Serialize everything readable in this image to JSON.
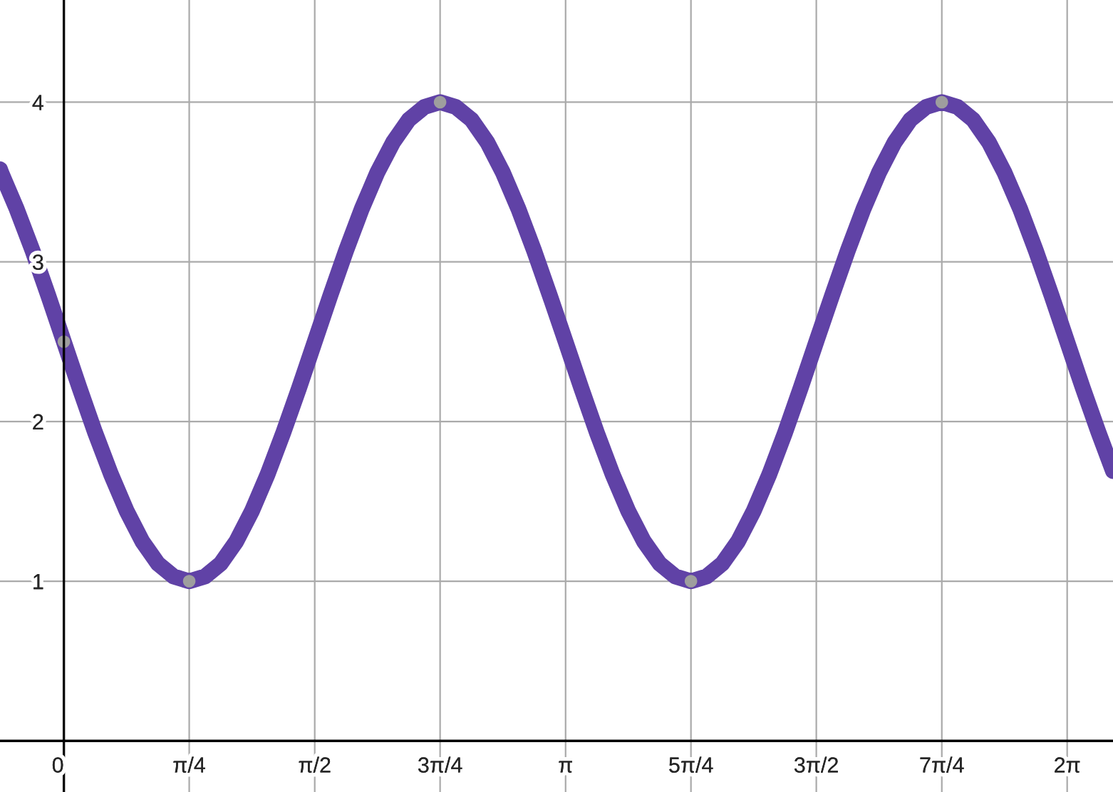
{
  "chart_data": {
    "type": "line",
    "xlim": [
      -0.4,
      6.57
    ],
    "ylim": [
      -0.32,
      4.64
    ],
    "xticks": [
      {
        "value": 0,
        "label": "0"
      },
      {
        "value": 0.785,
        "label": "π/4"
      },
      {
        "value": 1.571,
        "label": "π/2"
      },
      {
        "value": 2.356,
        "label": "3π/4"
      },
      {
        "value": 3.142,
        "label": "π"
      },
      {
        "value": 3.927,
        "label": "5π/4"
      },
      {
        "value": 4.712,
        "label": "3π/2"
      },
      {
        "value": 5.498,
        "label": "7π/4"
      },
      {
        "value": 6.283,
        "label": "2π"
      }
    ],
    "yticks": [
      1,
      2,
      3,
      4
    ],
    "grid": true,
    "series": [
      {
        "color": "#6042a6",
        "marker": "none",
        "line_style": "solid",
        "x": [
          -0.4,
          -0.393,
          -0.295,
          -0.196,
          -0.098,
          0,
          0.098,
          0.196,
          0.295,
          0.393,
          0.491,
          0.589,
          0.687,
          0.785,
          0.884,
          0.982,
          1.08,
          1.178,
          1.276,
          1.374,
          1.473,
          1.571,
          1.669,
          1.767,
          1.865,
          1.963,
          2.062,
          2.16,
          2.258,
          2.356,
          2.454,
          2.553,
          2.651,
          2.749,
          2.847,
          2.945,
          3.043,
          3.142,
          3.24,
          3.338,
          3.436,
          3.534,
          3.632,
          3.731,
          3.829,
          3.927,
          4.025,
          4.123,
          4.222,
          4.32,
          4.418,
          4.516,
          4.614,
          4.712,
          4.811,
          4.909,
          5.007,
          5.105,
          5.203,
          5.301,
          5.4,
          5.498,
          5.596,
          5.694,
          5.792,
          5.89,
          5.989,
          6.087,
          6.185,
          6.283,
          6.381,
          6.48,
          6.57
        ],
        "values": [
          3.58,
          3.56,
          3.33,
          3.07,
          2.79,
          2.5,
          2.21,
          1.93,
          1.67,
          1.44,
          1.25,
          1.11,
          1.03,
          1,
          1.03,
          1.11,
          1.25,
          1.44,
          1.67,
          1.93,
          2.21,
          2.5,
          2.79,
          3.07,
          3.33,
          3.56,
          3.75,
          3.89,
          3.97,
          4,
          3.97,
          3.89,
          3.75,
          3.56,
          3.33,
          3.07,
          2.79,
          2.5,
          2.21,
          1.93,
          1.67,
          1.44,
          1.25,
          1.11,
          1.03,
          1,
          1.03,
          1.11,
          1.25,
          1.44,
          1.67,
          1.93,
          2.21,
          2.5,
          2.79,
          3.07,
          3.33,
          3.56,
          3.75,
          3.89,
          3.97,
          4,
          3.97,
          3.89,
          3.75,
          3.56,
          3.33,
          3.07,
          2.79,
          2.5,
          2.21,
          1.93,
          1.69
        ]
      },
      {
        "type": "scatter",
        "color": "#9e9e9e",
        "marker": "circle",
        "x": [
          0,
          0.785,
          2.356,
          3.927,
          5.498
        ],
        "values": [
          2.5,
          1,
          4,
          1,
          4
        ]
      }
    ]
  }
}
